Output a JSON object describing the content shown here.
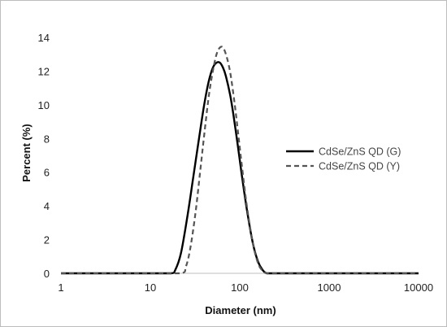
{
  "chart_data": {
    "type": "line",
    "title": "",
    "xlabel": "Diameter (nm)",
    "ylabel": "Percent (%)",
    "xscale": "log",
    "xlim": [
      1,
      10000
    ],
    "ylim": [
      0,
      14
    ],
    "x_ticks": [
      1,
      10,
      100,
      1000,
      10000
    ],
    "x_tick_labels": [
      "1",
      "10",
      "100",
      "1000",
      "10000"
    ],
    "y_ticks": [
      0,
      2,
      4,
      6,
      8,
      10,
      12,
      14
    ],
    "y_tick_labels": [
      "0",
      "2",
      "4",
      "6",
      "8",
      "10",
      "12",
      "14"
    ],
    "grid": false,
    "legend_position": "right",
    "series": [
      {
        "name": "CdSe/ZnS QD (G)",
        "color": "#000000",
        "style": "solid",
        "x": [
          1,
          10,
          17,
          19,
          22,
          26,
          30,
          35,
          40,
          45,
          50,
          55,
          60,
          65,
          70,
          78,
          85,
          95,
          105,
          120,
          140,
          160,
          180,
          200,
          230,
          300,
          1000,
          10000
        ],
        "y": [
          0,
          0,
          0,
          0.2,
          1.2,
          3.4,
          5.6,
          8.0,
          10.0,
          11.4,
          12.2,
          12.5,
          12.5,
          12.2,
          11.7,
          10.6,
          9.4,
          7.6,
          5.9,
          3.8,
          1.8,
          0.7,
          0.2,
          0,
          0,
          0,
          0,
          0
        ]
      },
      {
        "name": "CdSe/ZnS QD (Y)",
        "color": "#555555",
        "style": "dashed",
        "x": [
          1,
          10,
          22,
          25,
          28,
          32,
          36,
          40,
          45,
          50,
          55,
          60,
          65,
          70,
          75,
          80,
          88,
          95,
          105,
          120,
          140,
          160,
          180,
          200,
          220,
          300,
          1000,
          10000
        ],
        "y": [
          0,
          0,
          0,
          0.4,
          1.5,
          3.6,
          6.0,
          8.2,
          10.5,
          12.0,
          13.0,
          13.4,
          13.4,
          13.0,
          12.4,
          11.6,
          10.0,
          8.5,
          6.5,
          4.0,
          1.8,
          0.6,
          0.15,
          0,
          0,
          0,
          0,
          0
        ]
      }
    ]
  }
}
